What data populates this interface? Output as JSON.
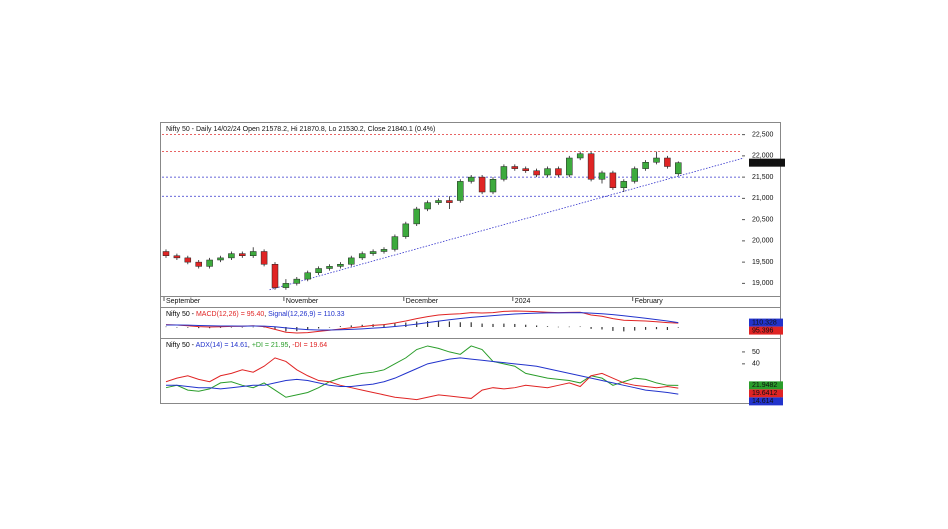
{
  "chart_data": [
    {
      "type": "candlestick",
      "title": "Nifty 50 - Daily 14/02/24 Open 21578.2, Hi 21870.8, Lo 21530.2, Close 21840.1 (0.4%)",
      "categories": [
        "September",
        null,
        null,
        null,
        null,
        null,
        null,
        null,
        null,
        null,
        null,
        "November",
        null,
        null,
        null,
        null,
        null,
        null,
        null,
        null,
        null,
        null,
        "December",
        null,
        null,
        null,
        null,
        null,
        null,
        null,
        null,
        null,
        "2024",
        null,
        null,
        null,
        null,
        null,
        null,
        null,
        null,
        null,
        null,
        "February",
        null,
        null,
        null,
        null
      ],
      "open": [
        19750,
        19650,
        19600,
        19500,
        19400,
        19550,
        19600,
        19700,
        19650,
        19750,
        19450,
        18900,
        19000,
        19100,
        19250,
        19350,
        19400,
        19450,
        19600,
        19700,
        19750,
        19800,
        20100,
        20400,
        20750,
        20900,
        20950,
        20950,
        21400,
        21500,
        21150,
        21450,
        21750,
        21700,
        21650,
        21550,
        21700,
        21550,
        21950,
        22050,
        21450,
        21600,
        21250,
        21400,
        21700,
        21850,
        21950,
        21578.2
      ],
      "high": [
        19800,
        19700,
        19650,
        19550,
        19600,
        19650,
        19750,
        19750,
        19850,
        19800,
        19500,
        19100,
        19150,
        19300,
        19400,
        19450,
        19500,
        19650,
        19750,
        19800,
        19850,
        20150,
        20450,
        20800,
        20950,
        21000,
        21050,
        21450,
        21550,
        21550,
        21500,
        21800,
        21800,
        21750,
        21700,
        21750,
        21750,
        22000,
        22100,
        22100,
        21650,
        21650,
        21450,
        21750,
        21900,
        22100,
        22000,
        21870.8
      ],
      "low": [
        19600,
        19550,
        19450,
        19350,
        19350,
        19500,
        19550,
        19600,
        19600,
        19400,
        18850,
        18850,
        18950,
        19050,
        19200,
        19300,
        19350,
        19400,
        19550,
        19650,
        19700,
        19750,
        20050,
        20350,
        20700,
        20850,
        20750,
        20900,
        21350,
        21100,
        21100,
        21400,
        21650,
        21600,
        21500,
        21500,
        21500,
        21500,
        21900,
        21400,
        21350,
        21200,
        21150,
        21350,
        21650,
        21800,
        21700,
        21530.2
      ],
      "close": [
        19650,
        19600,
        19500,
        19400,
        19550,
        19600,
        19700,
        19650,
        19750,
        19450,
        18900,
        19000,
        19100,
        19250,
        19350,
        19400,
        19450,
        19600,
        19700,
        19750,
        19800,
        20100,
        20400,
        20750,
        20900,
        20950,
        20900,
        21400,
        21500,
        21150,
        21450,
        21750,
        21700,
        21650,
        21550,
        21700,
        21550,
        21950,
        22050,
        21450,
        21600,
        21250,
        21400,
        21700,
        21850,
        21950,
        21750,
        21840.1
      ],
      "close_label": "21,840.1",
      "up_color": "#3daa3d",
      "down_color": "#e02424",
      "ylim": [
        18750,
        22750
      ],
      "yticks": [
        {
          "value": 19000,
          "label": "19,000"
        },
        {
          "value": 19500,
          "label": "19,500"
        },
        {
          "value": 20000,
          "label": "20,000"
        },
        {
          "value": 20500,
          "label": "20,500"
        },
        {
          "value": 21000,
          "label": "21,000"
        },
        {
          "value": 21500,
          "label": "21,500"
        },
        {
          "value": 22000,
          "label": "22,000"
        },
        {
          "value": 22500,
          "label": "22,500"
        }
      ],
      "levels": [
        {
          "value": 22500,
          "color": "#e03030"
        },
        {
          "value": 22100,
          "color": "#e03030"
        },
        {
          "value": 21500,
          "color": "#3333cc"
        },
        {
          "value": 21050,
          "color": "#3333cc"
        }
      ],
      "trendline": {
        "x": [
          9.5,
          53
        ],
        "y": [
          18850,
          21950
        ],
        "color": "#3333cc"
      }
    },
    {
      "type": "line",
      "title_parts": [
        {
          "text": "Nifty 50 - ",
          "color": "#000000"
        },
        {
          "text": "MACD(12,26) = 95.40",
          "color": "#e02424"
        },
        {
          "text": ", ",
          "color": "#000000"
        },
        {
          "text": "Signal(12,26,9) = 110.33",
          "color": "#2233cc"
        }
      ],
      "ylim": [
        -250,
        450
      ],
      "histogram": {
        "color": "#333333",
        "values": [
          10,
          0,
          -16,
          -29,
          -31,
          -21,
          -9,
          -3,
          5,
          -12,
          -66,
          -109,
          -103,
          -75,
          -36,
          -5,
          20,
          40,
          56,
          69,
          71,
          89,
          111,
          137,
          150,
          152,
          138,
          118,
          118,
          86,
          77,
          85,
          76,
          57,
          38,
          18,
          6,
          9,
          12,
          -47,
          -62,
          -98,
          -110,
          -90,
          -70,
          -55,
          -75,
          -15
        ]
      },
      "series": [
        {
          "color": "#e02424",
          "values": [
            60,
            50,
            30,
            10,
            0,
            5,
            15,
            20,
            30,
            10,
            -60,
            -130,
            -150,
            -140,
            -110,
            -80,
            -50,
            -20,
            10,
            40,
            60,
            100,
            150,
            210,
            260,
            300,
            320,
            330,
            360,
            350,
            360,
            390,
            400,
            395,
            385,
            370,
            360,
            365,
            370,
            300,
            270,
            210,
            170,
            160,
            150,
            130,
            110,
            95.396
          ]
        },
        {
          "color": "#2233cc",
          "values": [
            50,
            50,
            46,
            39,
            31,
            26,
            24,
            23,
            25,
            22,
            6,
            -21,
            -47,
            -65,
            -74,
            -75,
            -70,
            -60,
            -46,
            -29,
            -11,
            11,
            39,
            73,
            110,
            148,
            182,
            212,
            242,
            264,
            283,
            305,
            324,
            338,
            347,
            352,
            354,
            356,
            358,
            347,
            332,
            308,
            280,
            250,
            220,
            185,
            150,
            110.328
          ]
        }
      ]
    },
    {
      "type": "line",
      "title_parts": [
        {
          "text": "Nifty 50 - ",
          "color": "#000000"
        },
        {
          "text": "ADX(14) = 14.61",
          "color": "#2233cc"
        },
        {
          "text": ", ",
          "color": "#000000"
        },
        {
          "text": "+DI = 21.95",
          "color": "#2a9d2a"
        },
        {
          "text": ", ",
          "color": "#000000"
        },
        {
          "text": "-DI = 19.64",
          "color": "#e02424"
        }
      ],
      "ylim": [
        8,
        60
      ],
      "yticks": [
        40,
        50
      ],
      "series": [
        {
          "color": "#2a9d2a",
          "values": [
            20,
            22,
            18,
            17,
            19,
            24,
            25,
            22,
            20,
            24,
            18,
            12,
            14,
            16,
            20,
            25,
            28,
            30,
            32,
            33,
            35,
            40,
            45,
            52,
            55,
            53,
            50,
            48,
            55,
            52,
            42,
            40,
            38,
            32,
            30,
            28,
            27,
            26,
            24,
            30,
            28,
            22,
            25,
            28,
            27,
            24,
            22,
            21.9482
          ]
        },
        {
          "color": "#e02424",
          "values": [
            25,
            28,
            30,
            27,
            25,
            30,
            32,
            35,
            33,
            38,
            45,
            42,
            35,
            30,
            26,
            25,
            22,
            20,
            18,
            16,
            14,
            12,
            11,
            10,
            12,
            14,
            13,
            12,
            11,
            18,
            20,
            19,
            20,
            22,
            21,
            20,
            22,
            24,
            21,
            30,
            32,
            28,
            24,
            22,
            21,
            20,
            21,
            19.6412
          ]
        },
        {
          "color": "#2233cc",
          "values": [
            22,
            22,
            21,
            20,
            20,
            19,
            20,
            21,
            22,
            22,
            24,
            26,
            27,
            26,
            24,
            22,
            21,
            21,
            22,
            23,
            25,
            28,
            32,
            36,
            40,
            42,
            44,
            45,
            44,
            43,
            42,
            41,
            40,
            39,
            38,
            36,
            34,
            32,
            30,
            28,
            26,
            24,
            22,
            20,
            18,
            17,
            16,
            14.614
          ]
        }
      ]
    }
  ]
}
